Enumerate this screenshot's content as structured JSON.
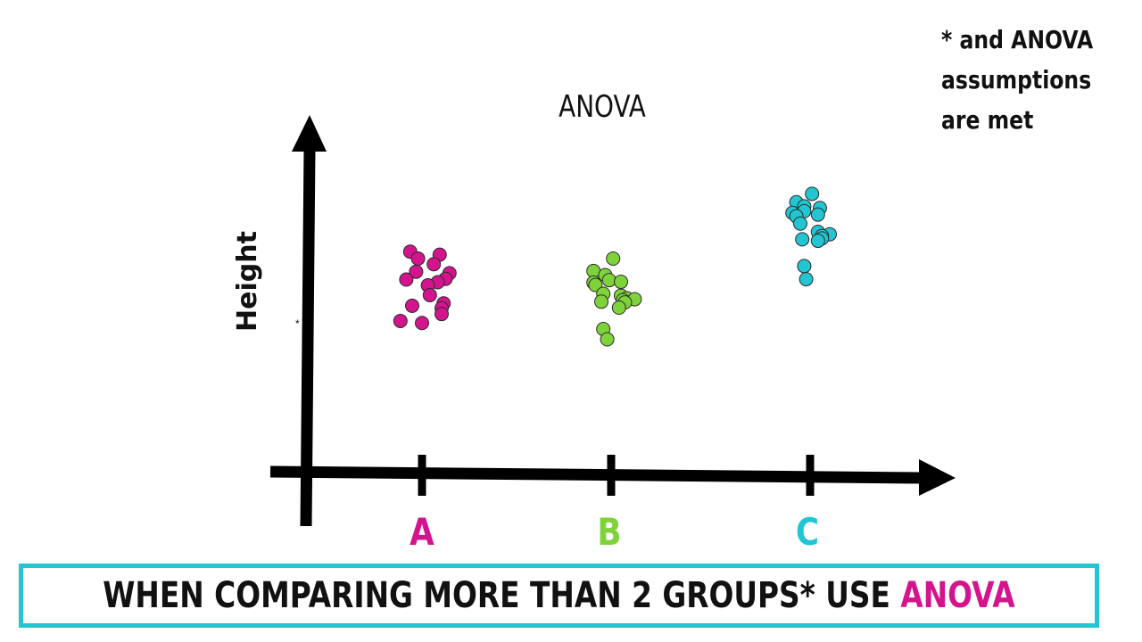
{
  "chart_data": {
    "type": "scatter",
    "title": "ANOVA",
    "ylabel": "Height",
    "ylabel_marker": "*",
    "categories": [
      "A",
      "B",
      "C"
    ],
    "category_colors": [
      "#d4148d",
      "#7ed33b",
      "#22c5d1"
    ],
    "grid": false,
    "legend": "none",
    "ylim": [
      0,
      100
    ],
    "series": [
      {
        "category": "A",
        "color": "#d4148d",
        "points": [
          {
            "x": -0.6,
            "y": 65.6
          },
          {
            "x": 0.9,
            "y": 64.0
          },
          {
            "x": -0.2,
            "y": 61.9
          },
          {
            "x": 0.6,
            "y": 58.9
          },
          {
            "x": -0.3,
            "y": 54.9
          },
          {
            "x": 1.4,
            "y": 54.1
          },
          {
            "x": 1.2,
            "y": 51.1
          },
          {
            "x": -0.8,
            "y": 50.7
          },
          {
            "x": 0.8,
            "y": 49.3
          },
          {
            "x": 0.3,
            "y": 47.6
          },
          {
            "x": 0.4,
            "y": 42.4
          },
          {
            "x": 1.1,
            "y": 38.0
          },
          {
            "x": -0.5,
            "y": 36.7
          },
          {
            "x": 1.0,
            "y": 35.4
          },
          {
            "x": 1.0,
            "y": 32.3
          },
          {
            "x": -1.1,
            "y": 28.6
          },
          {
            "x": 0.0,
            "y": 27.5
          }
        ]
      },
      {
        "category": "B",
        "color": "#7ed33b",
        "points": [
          {
            "x": 0.1,
            "y": 61.9
          },
          {
            "x": -0.9,
            "y": 55.3
          },
          {
            "x": -0.3,
            "y": 53.1
          },
          {
            "x": -0.1,
            "y": 50.4
          },
          {
            "x": 0.5,
            "y": 49.5
          },
          {
            "x": -0.9,
            "y": 49.1
          },
          {
            "x": -0.8,
            "y": 47.8
          },
          {
            "x": -0.4,
            "y": 43.1
          },
          {
            "x": 0.5,
            "y": 42.1
          },
          {
            "x": 0.8,
            "y": 40.7
          },
          {
            "x": 1.2,
            "y": 40.2
          },
          {
            "x": 0.6,
            "y": 39.7
          },
          {
            "x": -0.5,
            "y": 38.9
          },
          {
            "x": 0.7,
            "y": 38.5
          },
          {
            "x": 0.4,
            "y": 35.7
          },
          {
            "x": -0.4,
            "y": 24.3
          },
          {
            "x": -0.2,
            "y": 18.8
          }
        ]
      },
      {
        "category": "C",
        "color": "#22c5d1",
        "points": [
          {
            "x": 0.1,
            "y": 96.5
          },
          {
            "x": -0.7,
            "y": 92.0
          },
          {
            "x": -0.3,
            "y": 89.8
          },
          {
            "x": 0.5,
            "y": 88.9
          },
          {
            "x": -0.3,
            "y": 87.2
          },
          {
            "x": -0.9,
            "y": 86.3
          },
          {
            "x": -0.7,
            "y": 84.5
          },
          {
            "x": 0.4,
            "y": 85.4
          },
          {
            "x": -0.5,
            "y": 80.6
          },
          {
            "x": 0.4,
            "y": 76.2
          },
          {
            "x": 1.0,
            "y": 74.9
          },
          {
            "x": 0.6,
            "y": 74.0
          },
          {
            "x": 0.6,
            "y": 72.7
          },
          {
            "x": -0.4,
            "y": 72.2
          },
          {
            "x": 0.4,
            "y": 71.4
          },
          {
            "x": -0.3,
            "y": 57.9
          },
          {
            "x": -0.2,
            "y": 50.9
          }
        ]
      }
    ]
  },
  "note": {
    "lines": [
      "* and ANOVA",
      "assumptions",
      "are met"
    ]
  },
  "banner": {
    "text": "WHEN COMPARING MORE THAN 2 GROUPS* USE ",
    "accent": "ANOVA",
    "border_color": "#22c5d1",
    "accent_color": "#d4148d"
  },
  "colors": {
    "axis": "#000000",
    "text": "#111111"
  }
}
